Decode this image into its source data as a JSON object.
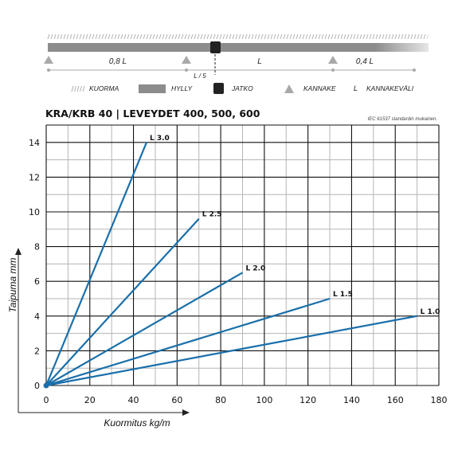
{
  "diagram": {
    "span_labels": [
      "0,8 L",
      "L",
      "0,4 L"
    ],
    "sub_label": "L / 5"
  },
  "legend": [
    {
      "key": "kuorma",
      "label": "KUORMA"
    },
    {
      "key": "hylly",
      "label": "HYLLY"
    },
    {
      "key": "jatko",
      "label": "JATKO"
    },
    {
      "key": "kannake",
      "label": "KANNAKE"
    },
    {
      "key": "kannakevali",
      "symbol": "L",
      "label": "KANNAKEVÄLI"
    }
  ],
  "colors": {
    "series": "#1a6faa",
    "grid_major": "#111111",
    "grid_minor": "#b5b5b5",
    "bar": "#8c8c8c",
    "support": "#a9a9a9",
    "joint": "#222222"
  },
  "chart_data": {
    "type": "line",
    "title": "KRA/KRB 40 | LEVEYDET 400, 500, 600",
    "subtitle": "IEC 61537 standardin mukainen.",
    "xlabel": "Kuormitus kg/m",
    "ylabel": "Taipuma mm",
    "xlim": [
      0,
      180
    ],
    "ylim": [
      0,
      15
    ],
    "xticks": [
      0,
      20,
      40,
      60,
      80,
      100,
      120,
      140,
      160,
      180
    ],
    "yticks": [
      0,
      2,
      4,
      6,
      8,
      10,
      12,
      14
    ],
    "grid": true,
    "series": [
      {
        "name": "L 3.0",
        "x": [
          0,
          46
        ],
        "y": [
          0,
          14
        ]
      },
      {
        "name": "L 2.5",
        "x": [
          0,
          70
        ],
        "y": [
          0,
          9.6
        ]
      },
      {
        "name": "L 2.0",
        "x": [
          0,
          90
        ],
        "y": [
          0,
          6.5
        ]
      },
      {
        "name": "L 1.5",
        "x": [
          0,
          130
        ],
        "y": [
          0,
          5
        ]
      },
      {
        "name": "L 1.0",
        "x": [
          0,
          170
        ],
        "y": [
          0,
          4
        ]
      }
    ]
  }
}
